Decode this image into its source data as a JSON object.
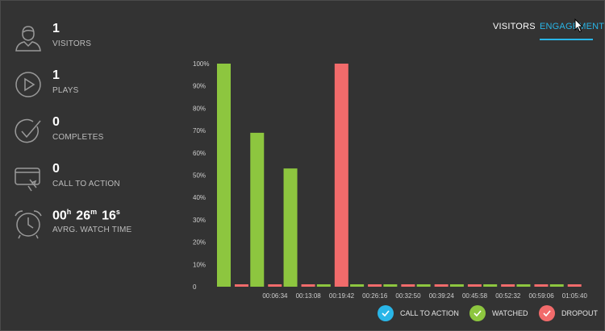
{
  "stats": [
    {
      "value": "1",
      "label": "VISITORS",
      "icon": "user-icon"
    },
    {
      "value": "1",
      "label": "PLAYS",
      "icon": "play-icon"
    },
    {
      "value": "0",
      "label": "COMPLETES",
      "icon": "checkmark-icon"
    },
    {
      "value": "0",
      "label": "CALL TO ACTION",
      "icon": "cta-click-icon"
    }
  ],
  "watch_time": {
    "hours": "00",
    "hours_unit": "h",
    "minutes": "26",
    "minutes_unit": "m",
    "seconds": "16",
    "seconds_unit": "s",
    "label": "AVRG. WATCH TIME",
    "icon": "alarm-clock-icon"
  },
  "tabs": [
    {
      "label": "VISITORS",
      "active": false
    },
    {
      "label": "ENGAGEMENT",
      "active": true
    }
  ],
  "legend": [
    {
      "label": "CALL TO ACTION",
      "color": "#29b6e8"
    },
    {
      "label": "WATCHED",
      "color": "#8dc63f"
    },
    {
      "label": "DROPOUT",
      "color": "#f26b6b"
    }
  ],
  "chart_data": {
    "type": "bar",
    "categories": [
      "",
      "00:06:34",
      "00:13:08",
      "00:19:42",
      "00:26:16",
      "00:32:50",
      "00:39:24",
      "00:45:58",
      "00:52:32",
      "00:59:06",
      "01:05:40"
    ],
    "series": [
      {
        "name": "WATCHED",
        "color": "#8dc63f",
        "values": [
          100,
          69,
          53,
          0,
          0,
          0,
          0,
          0,
          0,
          0,
          0
        ]
      },
      {
        "name": "DROPOUT",
        "color": "#f26b6b",
        "values": [
          0,
          0,
          0,
          100,
          0,
          0,
          0,
          0,
          0,
          0,
          0
        ]
      }
    ],
    "ylim": [
      0,
      100
    ],
    "yticks": [
      "0",
      "10%",
      "20%",
      "30%",
      "40%",
      "50%",
      "60%",
      "70%",
      "80%",
      "90%",
      "100%"
    ],
    "grid": false,
    "legend_position": "bottom-right"
  }
}
